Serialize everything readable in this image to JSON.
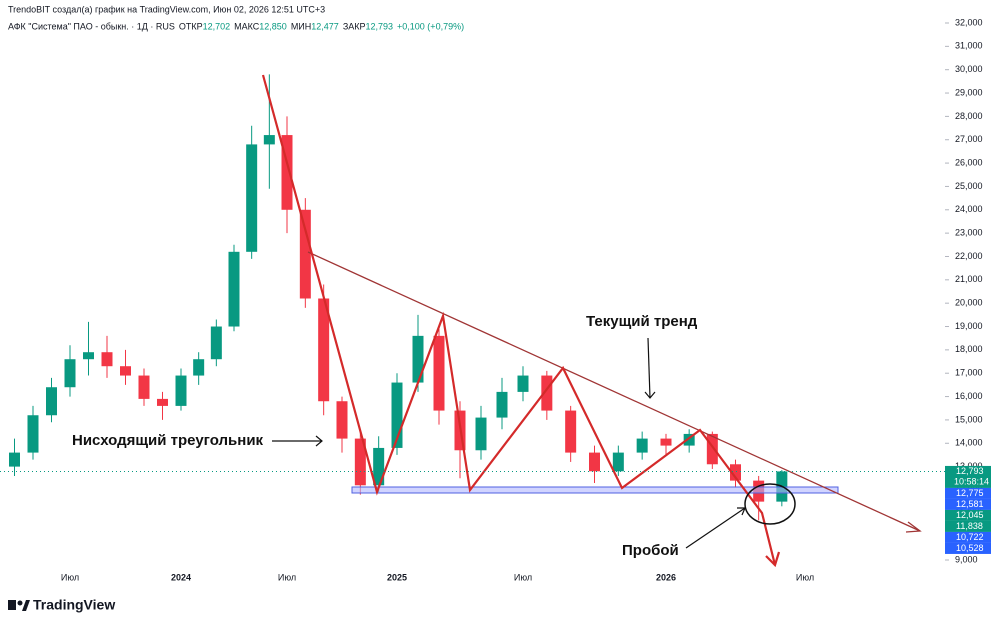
{
  "chart_data": {
    "type": "candlestick",
    "attribution": "TrendoBIT создал(а) график на TradingView.com, Июн 02, 2026 12:51 UTC+3",
    "legend": {
      "symbol": "АФК \"Система\" ПАО - обыкн. · 1Д · RUS",
      "fields": [
        {
          "label": "ОТКР",
          "value": "12,702"
        },
        {
          "label": "МАКС",
          "value": "12,850"
        },
        {
          "label": "МИН",
          "value": "12,477"
        },
        {
          "label": "ЗАКР",
          "value": "12,793"
        }
      ],
      "change": "+0,100 (+0,79%)"
    },
    "categories": [
      null,
      null,
      null,
      "Июл",
      null,
      null,
      null,
      null,
      null,
      "2024",
      null,
      null,
      null,
      null,
      null,
      "Июл",
      null,
      null,
      null,
      null,
      null,
      "2025",
      null,
      null,
      null,
      null,
      null,
      "Июл",
      null,
      null,
      null,
      null,
      null,
      "2026",
      null,
      null,
      null,
      null,
      null,
      "Июл"
    ],
    "open": [
      13.0,
      13.6,
      15.2,
      16.4,
      17.6,
      17.9,
      17.3,
      16.9,
      15.9,
      15.6,
      16.9,
      17.6,
      19.0,
      22.2,
      26.8,
      27.2,
      24.0,
      20.2,
      15.8,
      14.2,
      12.2,
      13.8,
      16.6,
      18.6,
      15.4,
      13.7,
      15.1,
      16.2,
      16.9,
      15.4,
      13.6,
      12.8,
      13.6,
      14.2,
      13.9,
      14.4,
      13.1,
      12.4,
      11.5,
      null
    ],
    "high": [
      14.2,
      15.6,
      16.8,
      18.2,
      19.2,
      18.6,
      18.0,
      17.2,
      16.2,
      17.2,
      17.9,
      19.3,
      22.5,
      27.6,
      29.8,
      28.0,
      24.5,
      20.8,
      16.0,
      14.6,
      14.3,
      17.0,
      19.5,
      18.9,
      15.8,
      15.6,
      16.8,
      17.3,
      17.1,
      15.6,
      13.9,
      13.9,
      14.5,
      14.4,
      14.6,
      14.5,
      13.3,
      12.6,
      12.85,
      null
    ],
    "low": [
      12.6,
      13.3,
      14.9,
      16.0,
      16.9,
      16.8,
      16.5,
      15.6,
      15.0,
      15.4,
      16.5,
      17.3,
      18.8,
      21.9,
      24.9,
      23.0,
      19.8,
      15.2,
      13.6,
      11.8,
      11.9,
      13.5,
      16.2,
      14.8,
      12.5,
      13.3,
      14.6,
      15.8,
      15.0,
      13.2,
      12.3,
      12.6,
      13.3,
      13.5,
      13.6,
      12.9,
      12.1,
      10.7,
      11.3,
      null
    ],
    "close": [
      13.6,
      15.2,
      16.4,
      17.6,
      17.9,
      17.3,
      16.9,
      15.9,
      15.6,
      16.9,
      17.6,
      19.0,
      22.2,
      26.8,
      27.2,
      24.0,
      20.2,
      15.8,
      14.2,
      12.2,
      13.8,
      16.6,
      18.6,
      15.4,
      13.7,
      15.1,
      16.2,
      16.9,
      15.4,
      13.6,
      12.8,
      13.6,
      14.2,
      13.9,
      14.4,
      13.1,
      12.4,
      11.5,
      12.793,
      null
    ],
    "up_color": "#089981",
    "down_color": "#f23645",
    "ylim": [
      9,
      32
    ],
    "yticks": [
      {
        "value": 9,
        "label": "9,000"
      },
      {
        "value": 10,
        "label": "10,000"
      },
      {
        "value": 11,
        "label": "11,000"
      },
      {
        "value": 12,
        "label": "12,000"
      },
      {
        "value": 13,
        "label": "13,000"
      },
      {
        "value": 14,
        "label": "14,000"
      },
      {
        "value": 15,
        "label": "15,000"
      },
      {
        "value": 16,
        "label": "16,000"
      },
      {
        "value": 17,
        "label": "17,000"
      },
      {
        "value": 18,
        "label": "18,000"
      },
      {
        "value": 19,
        "label": "19,000"
      },
      {
        "value": 20,
        "label": "20,000"
      },
      {
        "value": 21,
        "label": "21,000"
      },
      {
        "value": 22,
        "label": "22,000"
      },
      {
        "value": 23,
        "label": "23,000"
      },
      {
        "value": 24,
        "label": "24,000"
      },
      {
        "value": 25,
        "label": "25,000"
      },
      {
        "value": 26,
        "label": "26,000"
      },
      {
        "value": 27,
        "label": "27,000"
      },
      {
        "value": 28,
        "label": "28,000"
      },
      {
        "value": 29,
        "label": "29,000"
      },
      {
        "value": 30,
        "label": "30,000"
      },
      {
        "value": 31,
        "label": "31,000"
      },
      {
        "value": 32,
        "label": "32,000"
      }
    ],
    "price_labels": [
      {
        "value": 12.793,
        "label": "12,793",
        "timer": "10:58:14",
        "color": "#089981"
      },
      {
        "value": 12.775,
        "label": "12,775",
        "color": "#2962ff"
      },
      {
        "value": 12.581,
        "label": "12,581",
        "color": "#2962ff"
      },
      {
        "value": 12.045,
        "label": "12,045",
        "color": "#089981"
      },
      {
        "value": 11.838,
        "label": "11,838",
        "color": "#089981"
      },
      {
        "value": 10.722,
        "label": "10,722",
        "color": "#2962ff"
      },
      {
        "value": 10.528,
        "label": "10,528",
        "color": "#2962ff"
      }
    ],
    "annotations": [
      "Нисходящий треугольник",
      "Текущий тренд",
      "Пробой"
    ],
    "logo": "TradingView"
  }
}
